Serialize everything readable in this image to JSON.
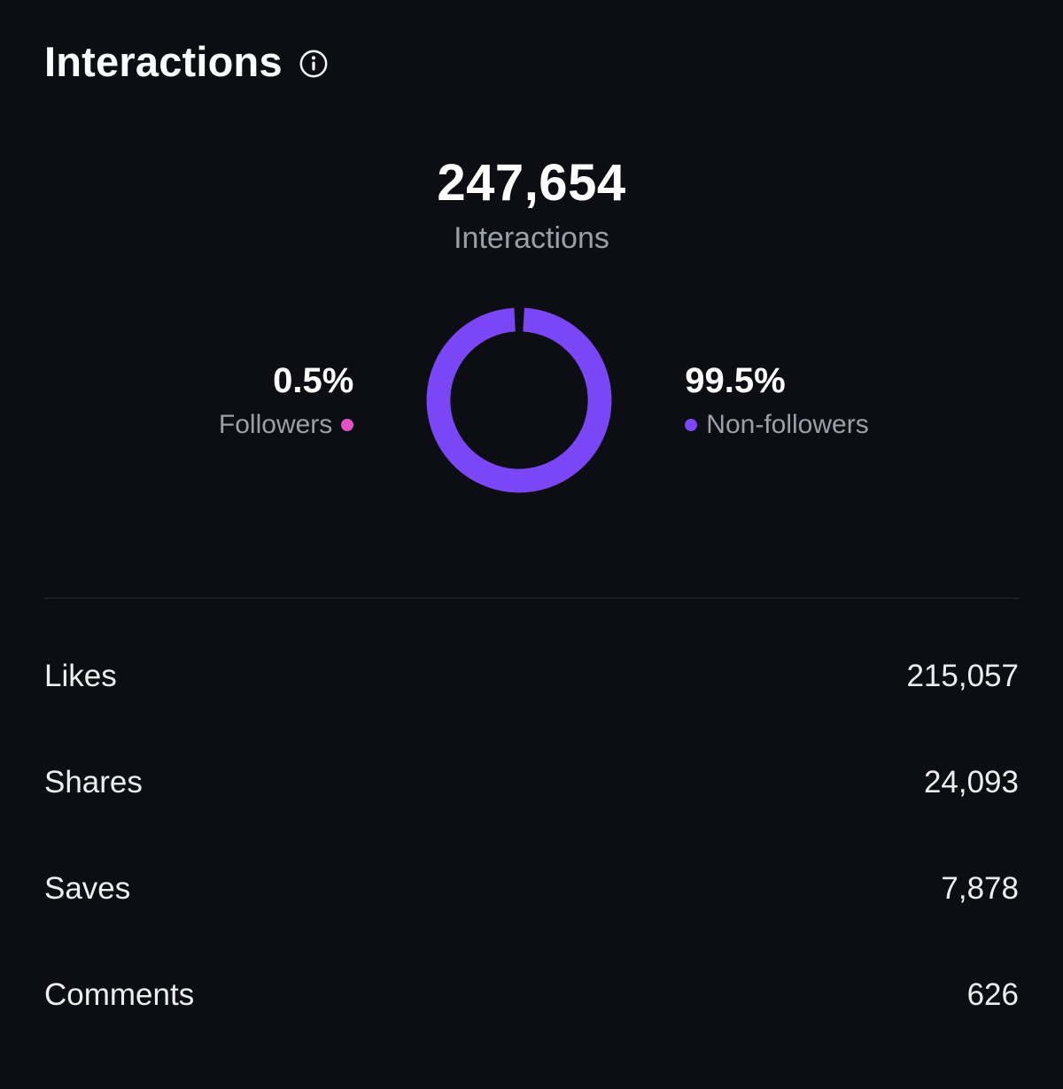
{
  "header": {
    "title": "Interactions"
  },
  "summary": {
    "value": "247,654",
    "label": "Interactions"
  },
  "chart_data": {
    "type": "pie",
    "title": "Interactions",
    "categories": [
      "Followers",
      "Non-followers"
    ],
    "values": [
      0.5,
      99.5
    ],
    "legend": [
      {
        "label": "Followers",
        "color": "#e353c4"
      },
      {
        "label": "Non-followers",
        "color": "#7b46f5"
      }
    ],
    "center_total": "247,654"
  },
  "stats": {
    "left": {
      "value": "0.5%",
      "label": "Followers"
    },
    "right": {
      "value": "99.5%",
      "label": "Non-followers"
    }
  },
  "rows": [
    {
      "label": "Likes",
      "value": "215,057"
    },
    {
      "label": "Shares",
      "value": "24,093"
    },
    {
      "label": "Saves",
      "value": "7,878"
    },
    {
      "label": "Comments",
      "value": "626"
    }
  ],
  "colors": {
    "background": "#0c0e14",
    "accent_purple": "#7b46f5",
    "accent_pink": "#e353c4",
    "muted_text": "#9aa0a8"
  }
}
